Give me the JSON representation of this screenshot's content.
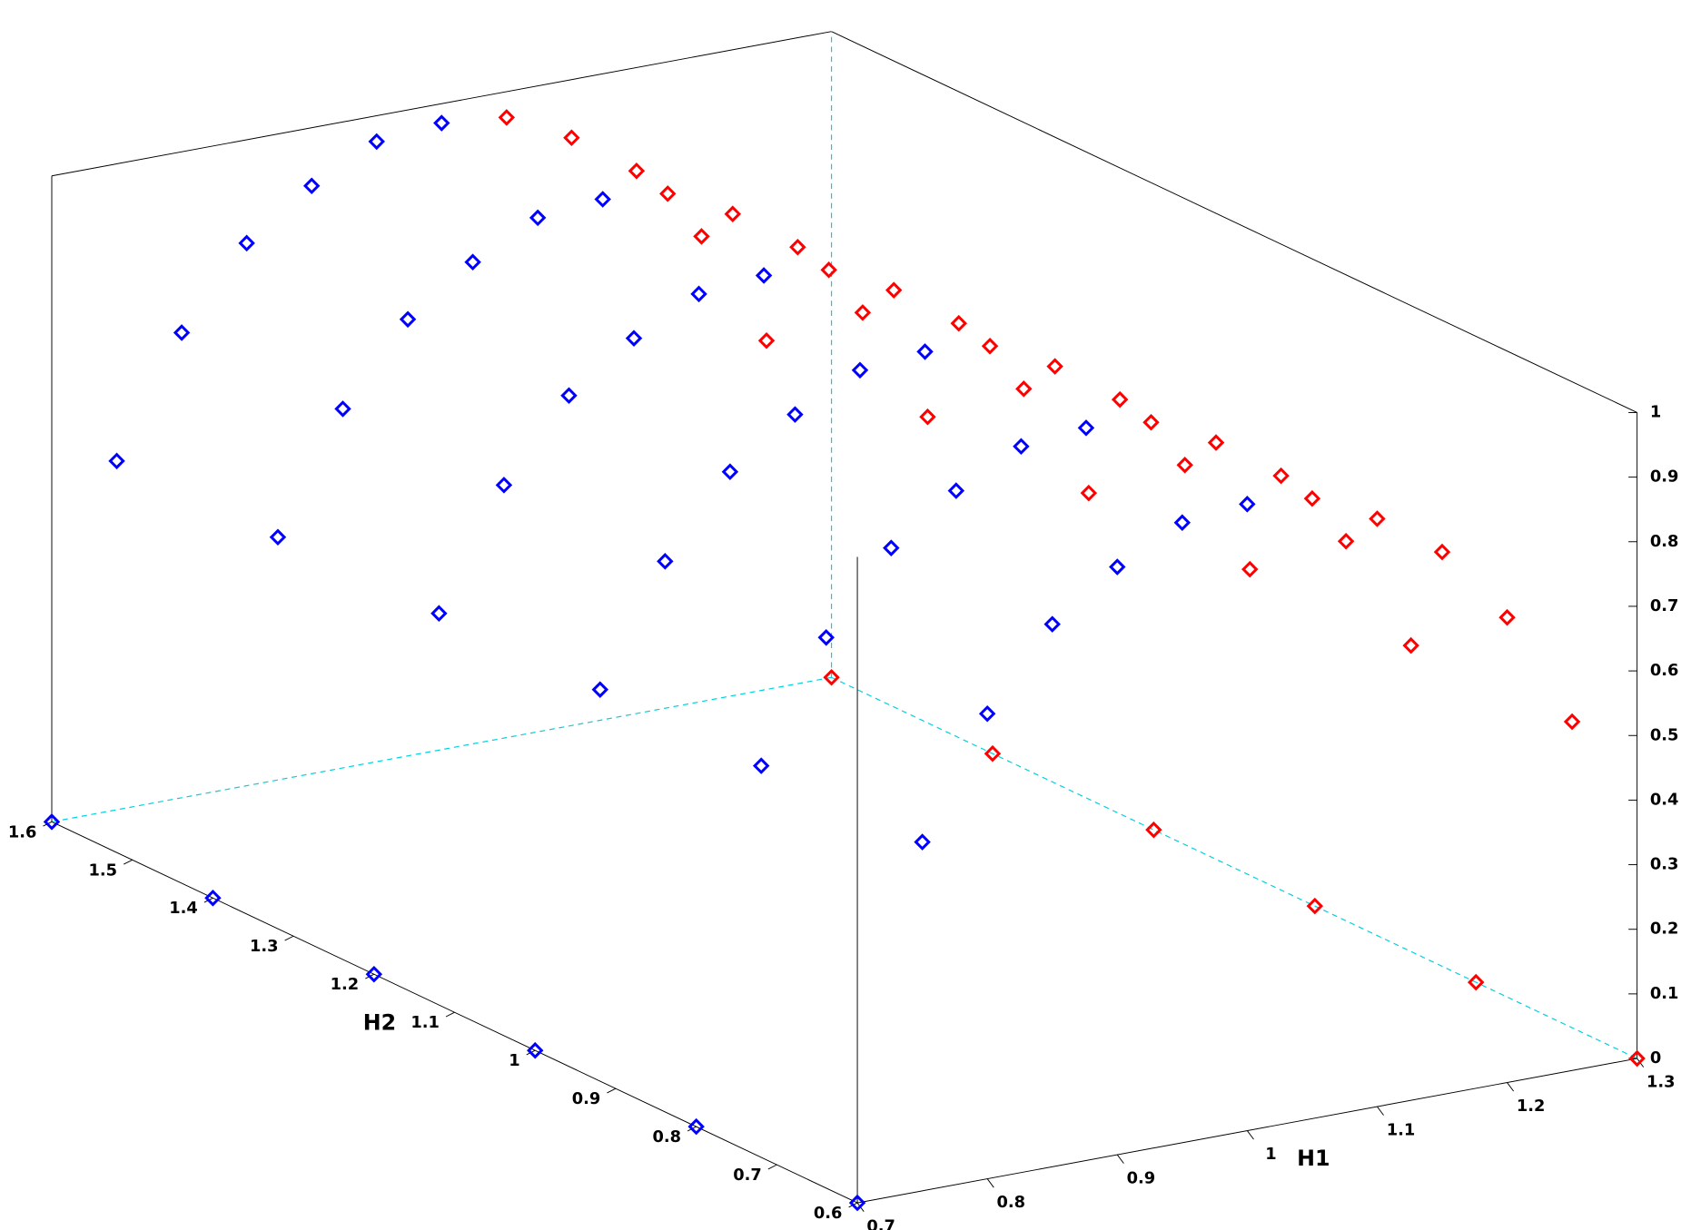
{
  "chart_data": {
    "type": "scatter3d",
    "xlabel": "H1",
    "ylabel": "H2",
    "xlim": [
      0.7,
      1.3
    ],
    "ylim": [
      0.6,
      1.6
    ],
    "zlim": [
      0,
      1
    ],
    "xticks": [
      0.7,
      0.8,
      0.9,
      1,
      1.1,
      1.2,
      1.3
    ],
    "yticks": [
      0.6,
      0.7,
      0.8,
      0.9,
      1,
      1.1,
      1.2,
      1.3,
      1.4,
      1.5,
      1.6
    ],
    "zticks": [
      0,
      0.1,
      0.2,
      0.3,
      0.4,
      0.5,
      0.6,
      0.7,
      0.8,
      0.9,
      1
    ],
    "marker": "diamond",
    "series": [
      {
        "color": "#0000ff",
        "x": [
          0.7,
          0.75,
          0.8,
          0.85,
          0.9,
          0.95,
          1.0,
          0.7,
          0.75,
          0.8,
          0.85,
          0.9,
          0.95,
          1.0,
          0.7,
          0.75,
          0.8,
          0.85,
          0.9,
          0.95,
          1.0,
          0.7,
          0.75,
          0.8,
          0.85,
          0.9,
          0.95,
          1.0,
          0.7,
          0.75,
          0.8,
          0.85,
          0.9,
          0.95,
          1.0,
          0.7,
          0.75,
          0.8,
          0.85,
          0.9,
          0.95,
          1.0
        ],
        "y": [
          0.6,
          0.6,
          0.6,
          0.6,
          0.6,
          0.6,
          0.6,
          0.8,
          0.8,
          0.8,
          0.8,
          0.8,
          0.8,
          0.8,
          1.0,
          1.0,
          1.0,
          1.0,
          1.0,
          1.0,
          1.0,
          1.2,
          1.2,
          1.2,
          1.2,
          1.2,
          1.2,
          1.2,
          1.4,
          1.4,
          1.4,
          1.4,
          1.4,
          1.4,
          1.4,
          1.6,
          1.6,
          1.6,
          1.6,
          1.6,
          1.6,
          1.6
        ],
        "z": [
          0,
          0.54,
          0.72,
          0.84,
          0.91,
          0.96,
          0.97,
          0,
          0.54,
          0.72,
          0.84,
          0.91,
          0.96,
          0.97,
          0,
          0.54,
          0.72,
          0.84,
          0.91,
          0.96,
          0.97,
          0,
          0.54,
          0.72,
          0.84,
          0.91,
          0.96,
          0.97,
          0,
          0.54,
          0.72,
          0.84,
          0.91,
          0.96,
          0.97,
          0,
          0.54,
          0.72,
          0.84,
          0.91,
          0.96,
          0.97
        ]
      },
      {
        "color": "#ff0000",
        "x": [
          1.05,
          1.1,
          1.15,
          1.2,
          1.25,
          1.3,
          1.05,
          1.1,
          1.15,
          1.2,
          1.25,
          1.3,
          1.05,
          1.1,
          1.15,
          1.2,
          1.25,
          1.3,
          1.05,
          1.1,
          1.15,
          1.2,
          1.25,
          1.3,
          1.05,
          1.1,
          1.15,
          1.2,
          1.25,
          1.3,
          1.05,
          1.1,
          1.15,
          1.2,
          1.25,
          1.3
        ],
        "y": [
          0.6,
          0.6,
          0.6,
          0.6,
          0.6,
          0.6,
          0.8,
          0.8,
          0.8,
          0.8,
          0.8,
          0.8,
          1.0,
          1.0,
          1.0,
          1.0,
          1.0,
          1.0,
          1.2,
          1.2,
          1.2,
          1.2,
          1.2,
          1.2,
          1.4,
          1.4,
          1.4,
          1.4,
          1.4,
          1.4,
          1.6,
          1.6,
          1.6,
          1.6,
          1.6,
          1.6
        ],
        "z": [
          0.96,
          0.91,
          0.84,
          0.72,
          0.54,
          0,
          0.96,
          0.91,
          0.84,
          0.72,
          0.54,
          0,
          0.96,
          0.91,
          0.84,
          0.72,
          0.54,
          0,
          0.96,
          0.91,
          0.84,
          0.72,
          0.54,
          0,
          0.96,
          0.91,
          0.84,
          0.72,
          0.54,
          0,
          0.96,
          0.91,
          0.84,
          0.72,
          0.54,
          0
        ]
      }
    ]
  }
}
